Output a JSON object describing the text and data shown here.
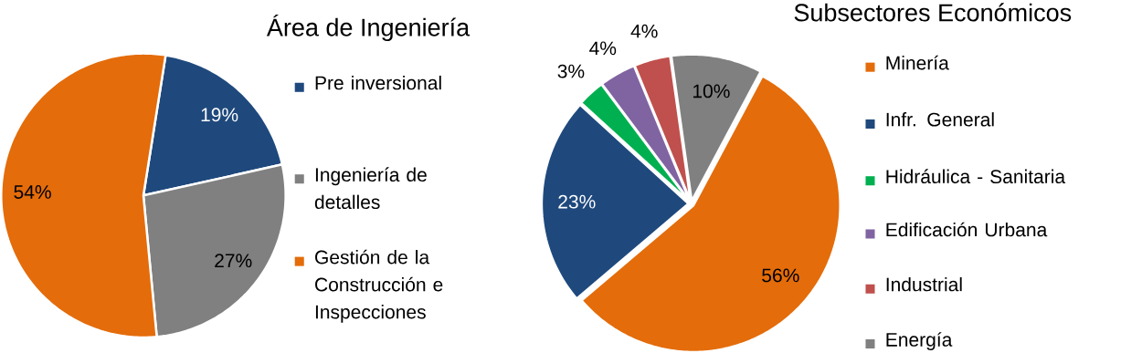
{
  "chart_data": [
    {
      "type": "pie",
      "title": "Área de Ingeniería",
      "categories": [
        "Pre inversional",
        "Ingeniería de detalles",
        "Gestión de la Construcción e Inspecciones"
      ],
      "values": [
        19,
        27,
        54
      ],
      "value_labels": [
        "19%",
        "27%",
        "54%"
      ],
      "colors": [
        "#1f497d",
        "#808080",
        "#e46c0a"
      ],
      "legend": "right"
    },
    {
      "type": "pie",
      "title": "Subsectores Económicos",
      "categories": [
        "Minería",
        "Infr. General",
        "Hidráulica - Sanitaria",
        "Edificación Urbana",
        "Industrial",
        "Energía"
      ],
      "values": [
        56,
        23,
        3,
        4,
        4,
        10
      ],
      "value_labels": [
        "56%",
        "23%",
        "3%",
        "4%",
        "4%",
        "10%"
      ],
      "colors": [
        "#e46c0a",
        "#1f497d",
        "#00b050",
        "#8064a2",
        "#c0504d",
        "#808080"
      ],
      "legend": "right"
    }
  ]
}
